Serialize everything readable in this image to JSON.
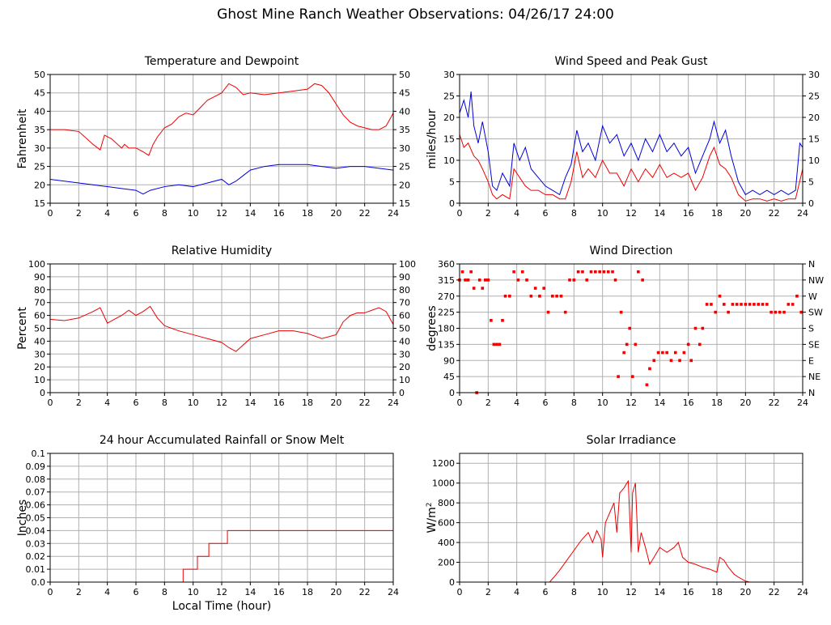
{
  "page": {
    "title": "Ghost Mine Ranch Weather Observations: 04/26/17 24:00"
  },
  "colors": {
    "grid": "#b0b0b0",
    "frame": "#000000",
    "red": "#ee0000",
    "blue": "#0000dd"
  },
  "chart_data": [
    {
      "id": "temp",
      "type": "line",
      "title": "Temperature and Dewpoint",
      "xlabel": "",
      "ylabel": "Fahrenheit",
      "xlim": [
        0,
        24
      ],
      "ylim": [
        15,
        50
      ],
      "yticks": [
        15,
        20,
        25,
        30,
        35,
        40,
        45,
        50
      ],
      "yticks_right": [
        15,
        20,
        25,
        30,
        35,
        40,
        45,
        50
      ],
      "xticks": [
        0,
        2,
        4,
        6,
        8,
        10,
        12,
        14,
        16,
        18,
        20,
        22,
        24
      ],
      "grid": true,
      "series": [
        {
          "color": "red",
          "x": [
            0,
            1,
            2,
            3,
            3.5,
            3.8,
            4.3,
            5,
            5.2,
            5.5,
            6,
            6.5,
            6.9,
            7.2,
            7.5,
            8,
            8.5,
            9,
            9.5,
            10,
            10.5,
            11,
            11.5,
            12,
            12.5,
            13,
            13.5,
            14,
            15,
            16,
            17,
            18,
            18.5,
            19,
            19.5,
            20,
            20.5,
            21,
            21.5,
            22,
            22.5,
            23,
            23.5,
            24
          ],
          "y": [
            35,
            35,
            34.5,
            31,
            29.5,
            33.5,
            32.5,
            30,
            31,
            30,
            30,
            29,
            28,
            31,
            33,
            35.5,
            36.5,
            38.5,
            39.5,
            39,
            41,
            43,
            44,
            45,
            47.5,
            46.5,
            44.5,
            45,
            44.5,
            45,
            45.5,
            46,
            47.5,
            47,
            45,
            42,
            39,
            37,
            36,
            35.5,
            35,
            35,
            36,
            39.5
          ]
        },
        {
          "color": "blue",
          "x": [
            0,
            1,
            2,
            3,
            4,
            5,
            6,
            6.5,
            7,
            8,
            9,
            10,
            11,
            12,
            12.5,
            13,
            13.5,
            14,
            15,
            16,
            17,
            18,
            19,
            20,
            21,
            22,
            23,
            24
          ],
          "y": [
            21.5,
            21,
            20.5,
            20,
            19.5,
            19,
            18.5,
            17.5,
            18.5,
            19.5,
            20,
            19.5,
            20.5,
            21.5,
            20,
            21,
            22.5,
            24,
            25,
            25.5,
            25.5,
            25.5,
            25,
            24.5,
            25,
            25,
            24.5,
            24
          ]
        }
      ]
    },
    {
      "id": "wind",
      "type": "line",
      "title": "Wind Speed and Peak Gust",
      "xlabel": "",
      "ylabel": "miles/hour",
      "xlim": [
        0,
        24
      ],
      "ylim": [
        0,
        30
      ],
      "yticks": [
        0,
        5,
        10,
        15,
        20,
        25,
        30
      ],
      "yticks_right": [
        0,
        5,
        10,
        15,
        20,
        25,
        30
      ],
      "xticks": [
        0,
        2,
        4,
        6,
        8,
        10,
        12,
        14,
        16,
        18,
        20,
        22,
        24
      ],
      "grid": true,
      "series": [
        {
          "color": "blue",
          "x": [
            0,
            0.3,
            0.6,
            0.8,
            1,
            1.3,
            1.6,
            2,
            2.3,
            2.6,
            3,
            3.5,
            3.8,
            4.2,
            4.6,
            5,
            5.5,
            6,
            6.5,
            7,
            7.4,
            7.8,
            8.2,
            8.6,
            9,
            9.5,
            10,
            10.5,
            11,
            11.5,
            12,
            12.5,
            13,
            13.5,
            14,
            14.5,
            15,
            15.5,
            16,
            16.5,
            17,
            17.5,
            17.8,
            18.2,
            18.6,
            19,
            19.5,
            20,
            20.5,
            21,
            21.5,
            22,
            22.5,
            23,
            23.5,
            23.8,
            24
          ],
          "y": [
            21,
            24,
            20,
            26,
            18,
            14,
            19,
            12,
            4,
            3,
            7,
            4,
            14,
            10,
            13,
            8,
            6,
            4,
            3,
            2,
            6,
            9,
            17,
            12,
            14,
            10,
            18,
            14,
            16,
            11,
            14,
            10,
            15,
            12,
            16,
            12,
            14,
            11,
            13,
            7,
            11,
            15,
            19,
            14,
            17,
            11,
            5,
            2,
            3,
            2,
            3,
            2,
            3,
            2,
            3,
            14,
            13
          ]
        },
        {
          "color": "red",
          "x": [
            0,
            0.3,
            0.6,
            1,
            1.3,
            1.6,
            2,
            2.3,
            2.6,
            3,
            3.5,
            3.8,
            4.2,
            4.6,
            5,
            5.5,
            6,
            6.5,
            7,
            7.4,
            7.8,
            8.2,
            8.6,
            9,
            9.5,
            10,
            10.5,
            11,
            11.5,
            12,
            12.5,
            13,
            13.5,
            14,
            14.5,
            15,
            15.5,
            16,
            16.5,
            17,
            17.5,
            17.8,
            18.2,
            18.6,
            19,
            19.5,
            20,
            20.5,
            21,
            21.5,
            22,
            22.5,
            23,
            23.5,
            24
          ],
          "y": [
            16,
            13,
            14,
            11,
            10,
            8,
            5,
            2,
            1,
            2,
            1,
            8,
            6,
            4,
            3,
            3,
            2,
            2,
            1,
            1,
            5,
            12,
            6,
            8,
            6,
            10,
            7,
            7,
            4,
            8,
            5,
            8,
            6,
            9,
            6,
            7,
            6,
            7,
            3,
            6,
            11,
            13,
            9,
            8,
            6,
            2,
            0.5,
            1,
            1,
            0.5,
            1,
            0.5,
            1,
            1,
            8
          ]
        }
      ]
    },
    {
      "id": "rh",
      "type": "line",
      "title": "Relative Humidity",
      "xlabel": "",
      "ylabel": "Percent",
      "xlim": [
        0,
        24
      ],
      "ylim": [
        0,
        100
      ],
      "yticks": [
        0,
        10,
        20,
        30,
        40,
        50,
        60,
        70,
        80,
        90,
        100
      ],
      "yticks_right": [
        0,
        10,
        20,
        30,
        40,
        50,
        60,
        70,
        80,
        90,
        100
      ],
      "xticks": [
        0,
        2,
        4,
        6,
        8,
        10,
        12,
        14,
        16,
        18,
        20,
        22,
        24
      ],
      "grid": true,
      "series": [
        {
          "color": "red",
          "x": [
            0,
            1,
            2,
            3,
            3.5,
            4,
            4.5,
            5,
            5.5,
            6,
            6.5,
            7,
            7.5,
            8,
            9,
            10,
            11,
            12,
            12.5,
            13,
            13.5,
            14,
            15,
            16,
            17,
            18,
            19,
            20,
            20.5,
            21,
            21.5,
            22,
            22.5,
            23,
            23.5,
            24
          ],
          "y": [
            57,
            56,
            58,
            63,
            66,
            54,
            57,
            60,
            64,
            60,
            63,
            67,
            58,
            52,
            48,
            45,
            42,
            39,
            35,
            32,
            37,
            42,
            45,
            48,
            48,
            46,
            42,
            45,
            55,
            60,
            62,
            62,
            64,
            66,
            63,
            53
          ]
        }
      ]
    },
    {
      "id": "wdir",
      "type": "scatter",
      "title": "Wind Direction",
      "xlabel": "",
      "ylabel": "degrees",
      "xlim": [
        0,
        24
      ],
      "ylim": [
        0,
        360
      ],
      "yticks": [
        0,
        45,
        90,
        135,
        180,
        225,
        270,
        315,
        360
      ],
      "yticks_right_labels": [
        "N",
        "NE",
        "E",
        "SE",
        "S",
        "SW",
        "W",
        "NW",
        "N"
      ],
      "xticks": [
        0,
        2,
        4,
        6,
        8,
        10,
        12,
        14,
        16,
        18,
        20,
        22,
        24
      ],
      "grid": true,
      "series": [
        {
          "color": "red",
          "x": [
            0,
            0.2,
            0.4,
            0.6,
            0.8,
            1,
            1.2,
            1.4,
            1.6,
            1.8,
            2,
            2.2,
            2.4,
            2.6,
            2.8,
            3,
            3.2,
            3.5,
            3.8,
            4.1,
            4.4,
            4.7,
            5,
            5.3,
            5.6,
            5.9,
            6.2,
            6.5,
            6.8,
            7.1,
            7.4,
            7.7,
            8,
            8.3,
            8.6,
            8.9,
            9.2,
            9.5,
            9.8,
            10.1,
            10.4,
            10.7,
            10.9,
            11.1,
            11.3,
            11.5,
            11.7,
            11.9,
            12.1,
            12.3,
            12.5,
            12.8,
            13.1,
            13.3,
            13.6,
            13.9,
            14.2,
            14.5,
            14.8,
            15.1,
            15.4,
            15.7,
            16,
            16.2,
            16.5,
            16.8,
            17,
            17.3,
            17.6,
            17.9,
            18.2,
            18.5,
            18.8,
            19.1,
            19.4,
            19.7,
            20,
            20.3,
            20.6,
            20.9,
            21.2,
            21.5,
            21.8,
            22.1,
            22.4,
            22.7,
            23,
            23.3,
            23.6,
            23.9
          ],
          "y": [
            315,
            338,
            315,
            315,
            338,
            292,
            0,
            315,
            292,
            315,
            315,
            202,
            135,
            135,
            135,
            202,
            270,
            270,
            338,
            315,
            338,
            315,
            270,
            292,
            270,
            292,
            225,
            270,
            270,
            270,
            225,
            315,
            315,
            338,
            338,
            315,
            338,
            338,
            338,
            338,
            338,
            338,
            315,
            45,
            225,
            112,
            135,
            180,
            45,
            135,
            338,
            315,
            22,
            67,
            90,
            112,
            112,
            112,
            90,
            112,
            90,
            112,
            135,
            90,
            180,
            135,
            180,
            247,
            247,
            225,
            270,
            247,
            225,
            247,
            247,
            247,
            247,
            247,
            247,
            247,
            247,
            247,
            225,
            225,
            225,
            225,
            247,
            247,
            270,
            225
          ]
        }
      ]
    },
    {
      "id": "rain",
      "type": "line",
      "title": "24 hour Accumulated Rainfall or Snow Melt",
      "xlabel": "Local Time (hour)",
      "ylabel": "Inches",
      "xlim": [
        0,
        24
      ],
      "ylim": [
        0,
        0.1
      ],
      "yticks": [
        0,
        0.01,
        0.02,
        0.03,
        0.04,
        0.05,
        0.06,
        0.07,
        0.08,
        0.09,
        0.1
      ],
      "ytick_labels": [
        "0.0",
        "0.01",
        "0.02",
        "0.03",
        "0.04",
        "0.05",
        "0.06",
        "0.07",
        "0.08",
        "0.09",
        "0.1"
      ],
      "xticks": [
        0,
        2,
        4,
        6,
        8,
        10,
        12,
        14,
        16,
        18,
        20,
        22,
        24
      ],
      "grid": true,
      "series": [
        {
          "color": "red",
          "step": true,
          "x": [
            0,
            9.3,
            10.3,
            11.1,
            12.4,
            24
          ],
          "y": [
            0,
            0.01,
            0.02,
            0.03,
            0.04,
            0.04
          ]
        }
      ]
    },
    {
      "id": "solar",
      "type": "line",
      "title": "Solar Irradiance",
      "xlabel": "",
      "ylabel": "W/m",
      "ylabel_sup": "2",
      "xlim": [
        0,
        24
      ],
      "ylim": [
        0,
        1300
      ],
      "yticks": [
        0,
        200,
        400,
        600,
        800,
        1000,
        1200
      ],
      "xticks": [
        0,
        2,
        4,
        6,
        8,
        10,
        12,
        14,
        16,
        18,
        20,
        22,
        24
      ],
      "grid": true,
      "series": [
        {
          "color": "red",
          "x": [
            0,
            6.3,
            6.6,
            7,
            7.5,
            8,
            8.5,
            9,
            9.3,
            9.6,
            9.9,
            10,
            10.2,
            10.5,
            10.8,
            11,
            11.2,
            11.5,
            11.7,
            11.8,
            12,
            12.1,
            12.3,
            12.5,
            12.7,
            13,
            13.3,
            13.6,
            14,
            14.5,
            15,
            15.3,
            15.6,
            16,
            16.5,
            17,
            17.5,
            18,
            18.2,
            18.5,
            18.8,
            19.2,
            19.5,
            20,
            20.3,
            24
          ],
          "y": [
            0,
            0,
            50,
            120,
            220,
            320,
            420,
            500,
            400,
            520,
            430,
            250,
            600,
            700,
            800,
            500,
            900,
            950,
            1000,
            1020,
            300,
            900,
            1000,
            300,
            500,
            350,
            180,
            250,
            350,
            300,
            350,
            400,
            250,
            200,
            180,
            150,
            130,
            100,
            250,
            220,
            150,
            80,
            50,
            10,
            0,
            0
          ]
        }
      ]
    }
  ]
}
